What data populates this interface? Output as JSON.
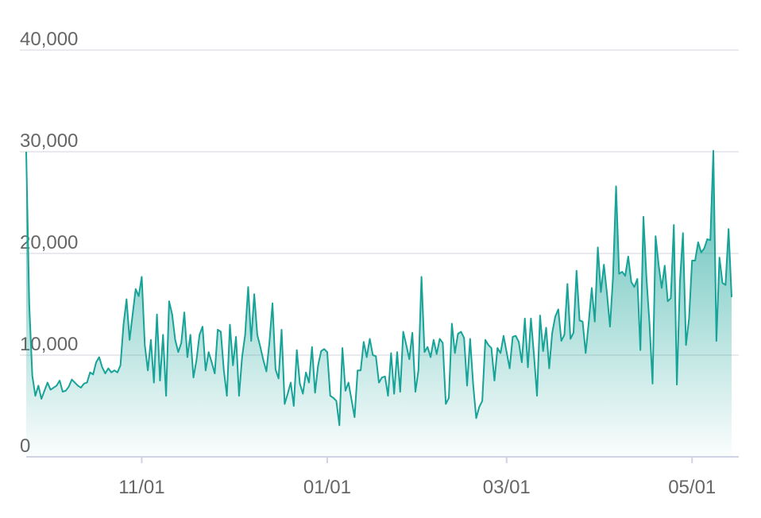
{
  "chart_data": {
    "type": "area",
    "color": "#17a398",
    "categories": [
      null,
      null,
      null,
      null,
      null,
      null,
      null,
      null,
      null,
      null,
      null,
      null,
      null,
      null,
      null,
      null,
      null,
      null,
      null,
      null,
      null,
      null,
      null,
      null,
      null,
      null,
      null,
      null,
      null,
      null,
      null,
      null,
      null,
      null,
      null,
      null,
      null,
      null,
      "11/01",
      null,
      null,
      null,
      null,
      null,
      null,
      null,
      null,
      null,
      null,
      null,
      null,
      null,
      null,
      null,
      null,
      null,
      null,
      null,
      null,
      null,
      null,
      null,
      null,
      null,
      null,
      null,
      null,
      null,
      null,
      null,
      null,
      null,
      null,
      null,
      null,
      null,
      null,
      null,
      null,
      null,
      null,
      null,
      null,
      null,
      null,
      null,
      null,
      null,
      null,
      null,
      null,
      null,
      null,
      null,
      null,
      null,
      null,
      null,
      null,
      "01/01",
      null,
      null,
      null,
      null,
      null,
      null,
      null,
      null,
      null,
      null,
      null,
      null,
      null,
      null,
      null,
      null,
      null,
      null,
      null,
      null,
      null,
      null,
      null,
      null,
      null,
      null,
      null,
      null,
      null,
      null,
      null,
      null,
      null,
      null,
      null,
      null,
      null,
      null,
      null,
      null,
      null,
      null,
      null,
      null,
      null,
      null,
      null,
      null,
      null,
      null,
      null,
      null,
      null,
      null,
      null,
      null,
      null,
      null,
      "03/01",
      null,
      null,
      null,
      null,
      null,
      null,
      null,
      null,
      null,
      null,
      null,
      null,
      null,
      null,
      null,
      null,
      null,
      null,
      null,
      null,
      null,
      null,
      null,
      null,
      null,
      null,
      null,
      null,
      null,
      null,
      null,
      null,
      null,
      null,
      null,
      null,
      null,
      null,
      null,
      null,
      null,
      null,
      null,
      null,
      null,
      null,
      null,
      null,
      null,
      null,
      null,
      null,
      null,
      null,
      null,
      null,
      null,
      null,
      null,
      null,
      "05/01",
      null,
      null,
      null,
      null,
      null,
      null,
      null,
      null,
      null,
      null,
      null,
      null,
      null
    ],
    "values": [
      30000,
      15000,
      8000,
      6000,
      7000,
      5700,
      6500,
      7300,
      6600,
      6800,
      7000,
      7500,
      6400,
      6500,
      6900,
      7600,
      7300,
      7000,
      6800,
      7200,
      7300,
      8300,
      8100,
      9300,
      9800,
      8800,
      8200,
      8700,
      8300,
      8500,
      8300,
      9000,
      13000,
      15500,
      11500,
      14000,
      16500,
      15800,
      17700,
      11000,
      8500,
      11500,
      7300,
      14000,
      7500,
      12000,
      6000,
      15300,
      14000,
      11500,
      10300,
      11200,
      14200,
      9800,
      12000,
      7800,
      9500,
      12000,
      12800,
      8500,
      10300,
      9300,
      8200,
      12500,
      12300,
      8500,
      6000,
      13000,
      9000,
      11800,
      6000,
      9800,
      12000,
      16700,
      11400,
      16000,
      12000,
      10800,
      9500,
      8400,
      11300,
      15100,
      8600,
      7700,
      12500,
      5200,
      6200,
      7300,
      5000,
      10500,
      7200,
      6200,
      8300,
      7300,
      10800,
      6300,
      9000,
      10400,
      10600,
      10300,
      6000,
      5800,
      5500,
      3100,
      10700,
      6500,
      7300,
      5600,
      3900,
      8500,
      8500,
      11300,
      9800,
      11600,
      10000,
      9900,
      7300,
      7800,
      7900,
      6000,
      10200,
      6200,
      10300,
      6400,
      12300,
      11000,
      9600,
      12200,
      6400,
      8500,
      17700,
      10300,
      10800,
      9800,
      11500,
      10100,
      11600,
      11200,
      5200,
      5800,
      13100,
      10200,
      12100,
      12300,
      11700,
      7000,
      11600,
      7100,
      3800,
      4900,
      5500,
      11500,
      11000,
      10700,
      7500,
      10700,
      10200,
      11900,
      10300,
      8700,
      11800,
      11900,
      11300,
      9300,
      13600,
      8800,
      13600,
      10000,
      6000,
      13900,
      10400,
      12700,
      8700,
      12200,
      13800,
      14500,
      11400,
      12000,
      17000,
      11600,
      12200,
      18300,
      13400,
      13300,
      10200,
      13200,
      16600,
      13300,
      20600,
      16200,
      18900,
      16100,
      12800,
      17700,
      26600,
      18000,
      18200,
      17800,
      19700,
      17200,
      16700,
      17500,
      10500,
      23600,
      17600,
      13100,
      7200,
      21700,
      18900,
      16600,
      18800,
      15300,
      15600,
      22800,
      7100,
      17200,
      22000,
      11000,
      13600,
      19300,
      19300,
      21100,
      20100,
      20500,
      21400,
      21300,
      30100,
      11400,
      19600,
      17100,
      16900,
      22400,
      15700
    ],
    "ylim": [
      0,
      40000
    ],
    "yticks": [
      0,
      {
        "value": 10000,
        "label": "10,000"
      },
      {
        "value": 20000,
        "label": "20,000"
      },
      {
        "value": 30000,
        "label": "30,000"
      },
      {
        "value": 40000,
        "label": "40,000"
      }
    ],
    "grid": true
  }
}
